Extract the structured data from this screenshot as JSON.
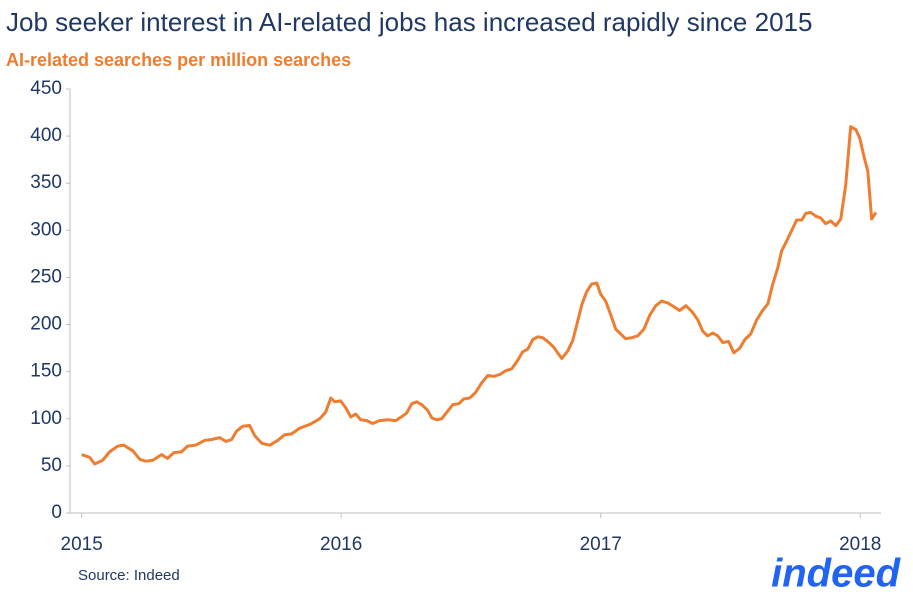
{
  "chart_data": {
    "type": "line",
    "title": "Job seeker interest in AI-related jobs has increased rapidly since 2015",
    "subtitle": "AI-related searches per million searches",
    "source": "Source: Indeed",
    "logo": "indeed",
    "x": [
      2015.0,
      2015.031,
      2015.05,
      2015.081,
      2015.108,
      2015.139,
      2015.162,
      2015.197,
      2015.224,
      2015.247,
      2015.274,
      2015.308,
      2015.331,
      2015.355,
      2015.385,
      2015.408,
      2015.439,
      2015.474,
      2015.501,
      2015.532,
      2015.555,
      2015.578,
      2015.597,
      2015.62,
      2015.647,
      2015.667,
      2015.694,
      2015.725,
      2015.755,
      2015.782,
      2015.809,
      2015.84,
      2015.879,
      2015.917,
      2015.94,
      2015.96,
      2015.975,
      2015.998,
      2016.017,
      2016.037,
      2016.056,
      2016.075,
      2016.098,
      2016.121,
      2016.148,
      2016.179,
      2016.21,
      2016.237,
      2016.252,
      2016.272,
      2016.291,
      2016.31,
      2016.333,
      2016.349,
      2016.368,
      2016.387,
      2016.407,
      2016.43,
      2016.453,
      2016.472,
      2016.495,
      2016.518,
      2016.541,
      2016.565,
      2016.588,
      2016.611,
      2016.634,
      2016.657,
      2016.68,
      2016.699,
      2016.719,
      2016.738,
      2016.757,
      2016.777,
      2016.8,
      2016.819,
      2016.834,
      2016.85,
      2016.873,
      2016.892,
      2016.908,
      2016.927,
      2016.946,
      2016.965,
      2016.985,
      2017.0,
      2017.019,
      2017.039,
      2017.058,
      2017.077,
      2017.096,
      2017.119,
      2017.143,
      2017.166,
      2017.189,
      2017.212,
      2017.235,
      2017.258,
      2017.281,
      2017.304,
      2017.328,
      2017.351,
      2017.374,
      2017.393,
      2017.412,
      2017.432,
      2017.451,
      2017.47,
      2017.493,
      2017.513,
      2017.536,
      2017.555,
      2017.578,
      2017.601,
      2017.624,
      2017.644,
      2017.663,
      2017.682,
      2017.697,
      2017.717,
      2017.736,
      2017.755,
      2017.775,
      2017.79,
      2017.809,
      2017.829,
      2017.848,
      2017.867,
      2017.886,
      2017.906,
      2017.925,
      2017.944,
      2017.963,
      2017.983,
      2017.998,
      2018.013,
      2018.029,
      2018.044,
      2018.06
    ],
    "series": [
      {
        "name": "AI-related searches",
        "color": "#ed7d31",
        "values": [
          62,
          59,
          52,
          56,
          65,
          71,
          72,
          66,
          57,
          55,
          56,
          62,
          58,
          64,
          65,
          71,
          72,
          77,
          78,
          80,
          76,
          78,
          87,
          92,
          93,
          82,
          74,
          72,
          77,
          83,
          84,
          90,
          94,
          100,
          107,
          122,
          118,
          119,
          112,
          102,
          105,
          99,
          98,
          95,
          98,
          99,
          98,
          103,
          106,
          116,
          118,
          115,
          109,
          101,
          99,
          100,
          107,
          115,
          116,
          121,
          122,
          128,
          138,
          146,
          145,
          147,
          151,
          153,
          162,
          171,
          174,
          184,
          187,
          186,
          181,
          176,
          170,
          164,
          172,
          183,
          200,
          221,
          235,
          243,
          244,
          232,
          225,
          210,
          195,
          190,
          185,
          186,
          188,
          195,
          210,
          220,
          225,
          223,
          219,
          215,
          220,
          214,
          205,
          193,
          188,
          191,
          188,
          181,
          182,
          170,
          175,
          184,
          190,
          205,
          215,
          222,
          243,
          260,
          278,
          289,
          300,
          311,
          311,
          318,
          319,
          315,
          313,
          307,
          310,
          305,
          312,
          348,
          410,
          407,
          398,
          380,
          363,
          312,
          319
        ]
      }
    ],
    "xlim": [
      2014.955,
      2018.08
    ],
    "xticks": [
      2015,
      2016,
      2017,
      2018
    ],
    "ylim": [
      0,
      450
    ],
    "yticks": [
      0,
      50,
      100,
      150,
      200,
      250,
      300,
      350,
      400,
      450
    ]
  }
}
